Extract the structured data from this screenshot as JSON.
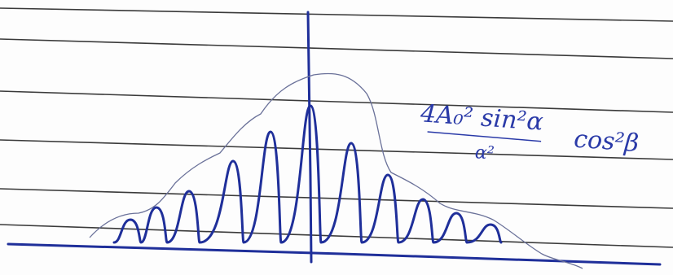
{
  "annotation": {
    "numerator": "4A₀² sin²α",
    "denominator": "α²",
    "factor": "cos²β"
  }
}
